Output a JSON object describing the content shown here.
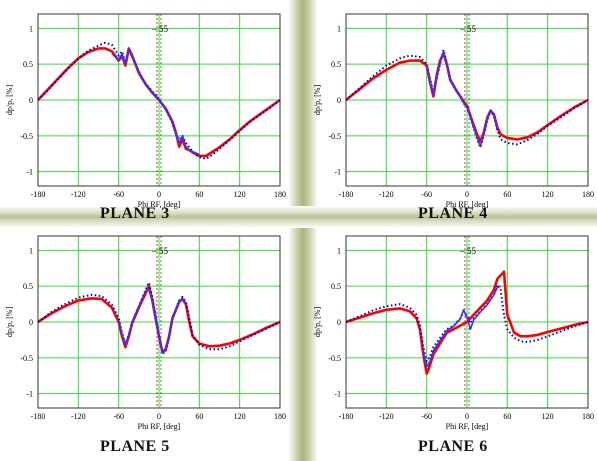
{
  "chart_data": [
    {
      "type": "line",
      "title": "PLANE 3",
      "xlabel": "Phi RF, [deg]",
      "ylabel": "dp/p, [%]",
      "xlim": [
        -180,
        180
      ],
      "ylim": [
        -1.2,
        1.2
      ],
      "xticks": [
        -180,
        -120,
        -60,
        0,
        60,
        120,
        180
      ],
      "yticks": [
        -1,
        -0.5,
        0,
        0.5,
        1
      ],
      "annotation": "55",
      "grid": true,
      "series": [
        {
          "color": "#ff0000",
          "style": "solid",
          "x": [
            -180,
            -165,
            -150,
            -135,
            -120,
            -105,
            -90,
            -80,
            -70,
            -60,
            -55,
            -50,
            -45,
            -40,
            -35,
            -30,
            -25,
            -20,
            -10,
            0,
            10,
            20,
            25,
            30,
            35,
            40,
            45,
            50,
            60,
            70,
            80,
            90,
            105,
            120,
            135,
            150,
            165,
            180
          ],
          "y": [
            0,
            0.15,
            0.3,
            0.45,
            0.58,
            0.67,
            0.72,
            0.72,
            0.68,
            0.55,
            0.62,
            0.48,
            0.72,
            0.62,
            0.5,
            0.38,
            0.3,
            0.22,
            0.1,
            0,
            -0.12,
            -0.3,
            -0.45,
            -0.65,
            -0.55,
            -0.68,
            -0.7,
            -0.73,
            -0.78,
            -0.78,
            -0.72,
            -0.66,
            -0.55,
            -0.42,
            -0.3,
            -0.2,
            -0.1,
            0
          ]
        },
        {
          "color": "#0000cc",
          "style": "dotted",
          "x": [
            -180,
            -165,
            -150,
            -135,
            -120,
            -105,
            -90,
            -80,
            -70,
            -60,
            -55,
            -50,
            -45,
            -40,
            -35,
            -30,
            -25,
            -20,
            -10,
            0,
            10,
            20,
            25,
            30,
            35,
            40,
            45,
            50,
            60,
            70,
            80,
            90,
            105,
            120,
            135,
            150,
            165,
            180
          ],
          "y": [
            0,
            0.14,
            0.29,
            0.44,
            0.58,
            0.69,
            0.76,
            0.8,
            0.77,
            0.62,
            0.68,
            0.52,
            0.7,
            0.6,
            0.5,
            0.4,
            0.31,
            0.23,
            0.12,
            0.01,
            -0.13,
            -0.32,
            -0.48,
            -0.55,
            -0.5,
            -0.6,
            -0.66,
            -0.72,
            -0.8,
            -0.82,
            -0.76,
            -0.68,
            -0.56,
            -0.43,
            -0.31,
            -0.21,
            -0.11,
            0
          ]
        },
        {
          "color": "#3333ff",
          "style": "solid",
          "x": [
            -70,
            -60,
            -55,
            -50,
            -45,
            -40,
            -35,
            -30,
            -25,
            -20,
            -10,
            0,
            10,
            20,
            25,
            30,
            35,
            40,
            45,
            50,
            60
          ],
          "y": [
            0.65,
            0.55,
            0.65,
            0.5,
            0.7,
            0.6,
            0.5,
            0.4,
            0.3,
            0.22,
            0.1,
            0,
            -0.12,
            -0.3,
            -0.47,
            -0.6,
            -0.5,
            -0.65,
            -0.7,
            -0.72,
            -0.76
          ]
        }
      ]
    },
    {
      "type": "line",
      "title": "PLANE 4",
      "xlabel": "Phi RF, [deg]",
      "ylabel": "dp/p, [%]",
      "xlim": [
        -180,
        180
      ],
      "ylim": [
        -1.2,
        1.2
      ],
      "xticks": [
        -180,
        -120,
        -60,
        0,
        60,
        120,
        180
      ],
      "yticks": [
        -1,
        -0.5,
        0,
        0.5,
        1
      ],
      "annotation": "55",
      "grid": true,
      "series": [
        {
          "color": "#ff0000",
          "style": "solid",
          "x": [
            -180,
            -160,
            -140,
            -120,
            -100,
            -85,
            -70,
            -60,
            -55,
            -50,
            -45,
            -40,
            -35,
            -30,
            -25,
            -20,
            -15,
            -10,
            -5,
            0,
            5,
            10,
            15,
            20,
            25,
            30,
            35,
            40,
            45,
            50,
            60,
            75,
            90,
            105,
            120,
            140,
            160,
            180
          ],
          "y": [
            0,
            0.15,
            0.3,
            0.42,
            0.52,
            0.55,
            0.55,
            0.48,
            0.25,
            0.05,
            0.35,
            0.55,
            0.65,
            0.5,
            0.28,
            0.2,
            0.12,
            0.05,
            -0.02,
            -0.08,
            -0.22,
            -0.35,
            -0.48,
            -0.58,
            -0.45,
            -0.25,
            -0.15,
            -0.2,
            -0.38,
            -0.48,
            -0.53,
            -0.55,
            -0.52,
            -0.45,
            -0.35,
            -0.22,
            -0.1,
            0
          ]
        },
        {
          "color": "#0000cc",
          "style": "dotted",
          "x": [
            -180,
            -160,
            -140,
            -120,
            -100,
            -85,
            -70,
            -60,
            -55,
            -50,
            -45,
            -40,
            -35,
            -30,
            -25,
            -20,
            -15,
            -10,
            -5,
            0,
            5,
            10,
            15,
            20,
            25,
            30,
            35,
            40,
            45,
            50,
            60,
            75,
            90,
            105,
            120,
            140,
            160,
            180
          ],
          "y": [
            0,
            0.16,
            0.33,
            0.48,
            0.58,
            0.62,
            0.6,
            0.5,
            0.3,
            0.12,
            0.3,
            0.5,
            0.7,
            0.52,
            0.3,
            0.2,
            0.12,
            0.05,
            -0.05,
            -0.1,
            -0.24,
            -0.4,
            -0.55,
            -0.66,
            -0.5,
            -0.28,
            -0.15,
            -0.22,
            -0.42,
            -0.55,
            -0.6,
            -0.62,
            -0.56,
            -0.47,
            -0.36,
            -0.24,
            -0.11,
            0
          ]
        },
        {
          "color": "#3333ff",
          "style": "solid",
          "x": [
            -60,
            -55,
            -50,
            -45,
            -40,
            -35,
            -30,
            -25,
            -20,
            -15,
            -10,
            -5,
            0,
            5,
            10,
            15,
            20,
            25,
            30,
            35,
            40,
            45
          ],
          "y": [
            0.48,
            0.27,
            0.08,
            0.33,
            0.52,
            0.68,
            0.5,
            0.3,
            0.2,
            0.12,
            0.05,
            -0.04,
            -0.1,
            -0.24,
            -0.38,
            -0.52,
            -0.65,
            -0.47,
            -0.26,
            -0.14,
            -0.2,
            -0.4
          ]
        }
      ]
    },
    {
      "type": "line",
      "title": "PLANE 5",
      "xlabel": "Phi RF, [deg]",
      "ylabel": "dp/p, [%]",
      "xlim": [
        -180,
        180
      ],
      "ylim": [
        -1.2,
        1.2
      ],
      "xticks": [
        -180,
        -120,
        -60,
        0,
        60,
        120,
        180
      ],
      "yticks": [
        -1,
        -0.5,
        0,
        0.5,
        1
      ],
      "annotation": "55",
      "grid": true,
      "series": [
        {
          "color": "#ff0000",
          "style": "solid",
          "x": [
            -180,
            -160,
            -140,
            -120,
            -100,
            -85,
            -70,
            -60,
            -55,
            -50,
            -45,
            -40,
            -30,
            -20,
            -15,
            -10,
            -5,
            0,
            5,
            10,
            15,
            20,
            30,
            35,
            40,
            45,
            50,
            60,
            75,
            90,
            105,
            120,
            140,
            160,
            180
          ],
          "y": [
            0,
            0.12,
            0.22,
            0.3,
            0.33,
            0.32,
            0.2,
            0,
            -0.2,
            -0.35,
            -0.2,
            -0.02,
            0.2,
            0.4,
            0.5,
            0.3,
            0.05,
            -0.2,
            -0.42,
            -0.38,
            -0.2,
            0.05,
            0.28,
            0.32,
            0.25,
            0.0,
            -0.2,
            -0.3,
            -0.34,
            -0.33,
            -0.3,
            -0.25,
            -0.17,
            -0.08,
            0
          ]
        },
        {
          "color": "#0000cc",
          "style": "dotted",
          "x": [
            -180,
            -160,
            -140,
            -120,
            -100,
            -85,
            -70,
            -60,
            -55,
            -50,
            -45,
            -40,
            -30,
            -20,
            -15,
            -10,
            -5,
            0,
            5,
            10,
            15,
            20,
            30,
            35,
            40,
            45,
            50,
            60,
            75,
            90,
            105,
            120,
            140,
            160,
            180
          ],
          "y": [
            0,
            0.14,
            0.25,
            0.34,
            0.38,
            0.36,
            0.24,
            0.05,
            -0.15,
            -0.3,
            -0.18,
            0,
            0.22,
            0.45,
            0.55,
            0.35,
            0.08,
            -0.18,
            -0.44,
            -0.42,
            -0.22,
            0.04,
            0.3,
            0.35,
            0.28,
            0.05,
            -0.18,
            -0.32,
            -0.38,
            -0.38,
            -0.34,
            -0.27,
            -0.18,
            -0.09,
            0
          ]
        },
        {
          "color": "#3333ff",
          "style": "solid",
          "x": [
            -60,
            -55,
            -50,
            -45,
            -40,
            -30,
            -20,
            -15,
            -10,
            -5,
            0,
            5,
            10,
            15,
            20,
            30,
            35,
            40
          ],
          "y": [
            0.02,
            -0.17,
            -0.32,
            -0.18,
            0,
            0.22,
            0.43,
            0.45,
            0.3,
            0.06,
            -0.18,
            -0.43,
            -0.4,
            -0.22,
            0.04,
            0.28,
            0.33,
            0.26
          ]
        }
      ]
    },
    {
      "type": "line",
      "title": "PLANE 6",
      "xlabel": "Phi RF, [deg]",
      "ylabel": "dp/p, [%]",
      "xlim": [
        -180,
        180
      ],
      "ylim": [
        -1.2,
        1.2
      ],
      "xticks": [
        -180,
        -120,
        -60,
        0,
        60,
        120,
        180
      ],
      "yticks": [
        -1,
        -0.5,
        0,
        0.5,
        1
      ],
      "annotation": "55",
      "grid": true,
      "series": [
        {
          "color": "#ff0000",
          "style": "solid",
          "x": [
            -180,
            -160,
            -140,
            -120,
            -100,
            -85,
            -75,
            -70,
            -65,
            -60,
            -55,
            -50,
            -40,
            -30,
            -20,
            -10,
            0,
            10,
            20,
            30,
            40,
            45,
            50,
            55,
            60,
            70,
            80,
            90,
            105,
            120,
            140,
            160,
            180
          ],
          "y": [
            0,
            0.06,
            0.12,
            0.17,
            0.19,
            0.15,
            0.05,
            -0.1,
            -0.45,
            -0.72,
            -0.6,
            -0.45,
            -0.3,
            -0.15,
            -0.1,
            -0.05,
            0.0,
            0.1,
            0.2,
            0.3,
            0.45,
            0.6,
            0.65,
            0.7,
            0.1,
            -0.15,
            -0.2,
            -0.2,
            -0.18,
            -0.14,
            -0.09,
            -0.04,
            0
          ]
        },
        {
          "color": "#0000cc",
          "style": "dotted",
          "x": [
            -180,
            -160,
            -140,
            -120,
            -100,
            -85,
            -75,
            -70,
            -65,
            -60,
            -55,
            -50,
            -40,
            -30,
            -20,
            -10,
            -5,
            0,
            5,
            10,
            20,
            30,
            40,
            45,
            50,
            55,
            60,
            70,
            80,
            90,
            105,
            120,
            140,
            160,
            180
          ],
          "y": [
            0,
            0.08,
            0.16,
            0.22,
            0.25,
            0.2,
            0.1,
            -0.05,
            -0.35,
            -0.55,
            -0.48,
            -0.35,
            -0.22,
            -0.1,
            -0.05,
            0.05,
            0.15,
            0.08,
            -0.02,
            0.05,
            0.15,
            0.25,
            0.38,
            0.52,
            0.45,
            0.1,
            -0.1,
            -0.22,
            -0.27,
            -0.28,
            -0.25,
            -0.2,
            -0.13,
            -0.06,
            0
          ]
        },
        {
          "color": "#3333ff",
          "style": "solid",
          "x": [
            -65,
            -60,
            -55,
            -50,
            -40,
            -30,
            -20,
            -10,
            -5,
            0,
            5,
            10,
            20,
            30,
            40,
            45,
            50
          ],
          "y": [
            -0.42,
            -0.62,
            -0.55,
            -0.4,
            -0.26,
            -0.12,
            -0.06,
            0.04,
            0.17,
            0.06,
            -0.1,
            0.03,
            0.14,
            0.24,
            0.38,
            0.48,
            0.5
          ]
        }
      ]
    }
  ]
}
